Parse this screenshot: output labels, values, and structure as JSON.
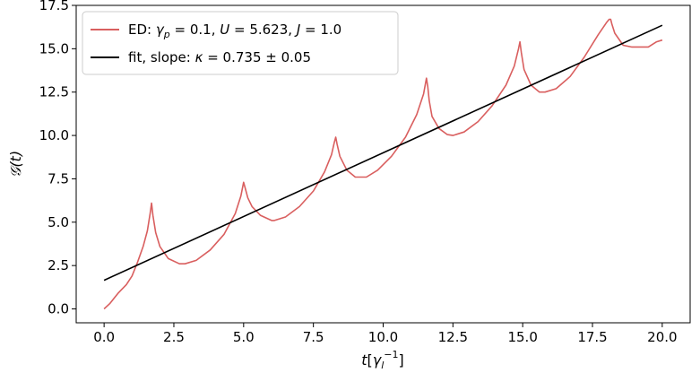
{
  "chart_data": {
    "type": "line",
    "xlabel": "t[γ_l^-1]",
    "ylabel": "𝒢(t)",
    "xlim": [
      -1.0,
      21.0
    ],
    "ylim": [
      -0.8,
      17.5
    ],
    "xticks": [
      "0.0",
      "2.5",
      "5.0",
      "7.5",
      "10.0",
      "12.5",
      "15.0",
      "17.5",
      "20.0"
    ],
    "yticks": [
      "0.0",
      "2.5",
      "5.0",
      "7.5",
      "10.0",
      "12.5",
      "15.0",
      "17.5"
    ],
    "grid": false,
    "legend_position": "top-left",
    "series": [
      {
        "name": "ED: γ_p = 0.1, U = 5.623, J = 1.0",
        "color": "#d95f5f",
        "x": [
          0.0,
          0.2,
          0.5,
          0.8,
          1.0,
          1.2,
          1.4,
          1.55,
          1.65,
          1.7,
          1.75,
          1.85,
          2.0,
          2.3,
          2.7,
          2.9,
          3.3,
          3.8,
          4.3,
          4.7,
          4.9,
          5.0,
          5.05,
          5.15,
          5.3,
          5.6,
          6.0,
          6.1,
          6.5,
          7.0,
          7.5,
          7.9,
          8.15,
          8.25,
          8.3,
          8.35,
          8.45,
          8.7,
          9.0,
          9.4,
          9.8,
          10.3,
          10.8,
          11.2,
          11.45,
          11.55,
          11.6,
          11.65,
          11.75,
          12.0,
          12.3,
          12.5,
          12.9,
          13.4,
          13.9,
          14.4,
          14.7,
          14.85,
          14.9,
          14.95,
          15.05,
          15.3,
          15.6,
          15.8,
          16.2,
          16.7,
          17.2,
          17.7,
          18.0,
          18.1,
          18.15,
          18.2,
          18.3,
          18.6,
          18.9,
          19.2,
          19.5,
          19.8,
          20.0
        ],
        "y": [
          0.0,
          0.3,
          0.9,
          1.4,
          1.9,
          2.7,
          3.6,
          4.5,
          5.5,
          6.1,
          5.4,
          4.4,
          3.6,
          2.9,
          2.6,
          2.6,
          2.8,
          3.4,
          4.3,
          5.5,
          6.5,
          7.3,
          7.0,
          6.4,
          5.9,
          5.4,
          5.1,
          5.1,
          5.3,
          5.9,
          6.8,
          7.9,
          8.9,
          9.6,
          9.9,
          9.5,
          8.8,
          8.0,
          7.6,
          7.6,
          8.0,
          8.8,
          9.9,
          11.2,
          12.4,
          13.3,
          12.8,
          12.0,
          11.1,
          10.4,
          10.05,
          10.0,
          10.2,
          10.8,
          11.7,
          12.9,
          14.0,
          15.0,
          15.4,
          14.8,
          13.8,
          12.9,
          12.5,
          12.5,
          12.7,
          13.4,
          14.5,
          15.8,
          16.5,
          16.7,
          16.7,
          16.4,
          15.9,
          15.2,
          15.1,
          15.1,
          15.1,
          15.4,
          15.5
        ]
      },
      {
        "name": "fit, slope: κ = 0.735 ± 0.05",
        "color": "#000000",
        "x": [
          0.0,
          20.0
        ],
        "y": [
          1.65,
          16.35
        ]
      }
    ]
  },
  "legend": {
    "entries": [
      {
        "prefix": "ED: ",
        "gamma": "γ",
        "gamma_sub": "p",
        "rest1": " = 0.1, ",
        "u": "U",
        "rest2": " = 5.623, ",
        "j": "J",
        "rest3": " = 1.0"
      },
      {
        "prefix": "fit, slope: ",
        "kappa": "κ",
        "rest": " = 0.735 ± 0.05"
      }
    ]
  },
  "axes": {
    "xlabel_t": "t",
    "xlabel_open": "[",
    "xlabel_gamma": "γ",
    "xlabel_sub": "l",
    "xlabel_sup": "−1",
    "xlabel_close": "]",
    "ylabel_main": "𝒢(t)"
  }
}
